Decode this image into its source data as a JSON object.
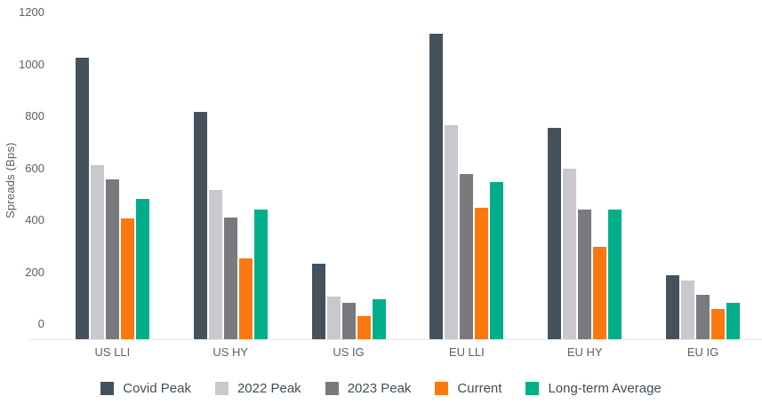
{
  "chart_data": {
    "type": "bar",
    "title": "",
    "ylabel": "Spreads (Bps)",
    "categories": [
      "US LLI",
      "US HY",
      "US IG",
      "EU LLI",
      "EU HY",
      "EU IG"
    ],
    "series": [
      {
        "name": "Covid Peak",
        "color": "#44525E",
        "values": [
          1085,
          875,
          290,
          1175,
          815,
          245
        ]
      },
      {
        "name": "2022 Peak",
        "color": "#CAC7CE",
        "values": [
          670,
          575,
          165,
          825,
          655,
          225
        ]
      },
      {
        "name": "2023 Peak",
        "color": "#7A7A7E",
        "values": [
          615,
          470,
          140,
          635,
          500,
          170
        ]
      },
      {
        "name": "Current",
        "color": "#FA780F",
        "values": [
          465,
          310,
          90,
          505,
          355,
          115
        ]
      },
      {
        "name": "Long-term Average",
        "color": "#00AE8A",
        "values": [
          540,
          500,
          155,
          605,
          500,
          140
        ]
      }
    ],
    "ylim": [
      0,
      1200
    ],
    "yticks": [
      0,
      200,
      400,
      600,
      800,
      1000,
      1200
    ],
    "grid": false,
    "legend_position": "bottom",
    "axis_line_color": "#e7e7ea",
    "text_color": "#55616c"
  }
}
